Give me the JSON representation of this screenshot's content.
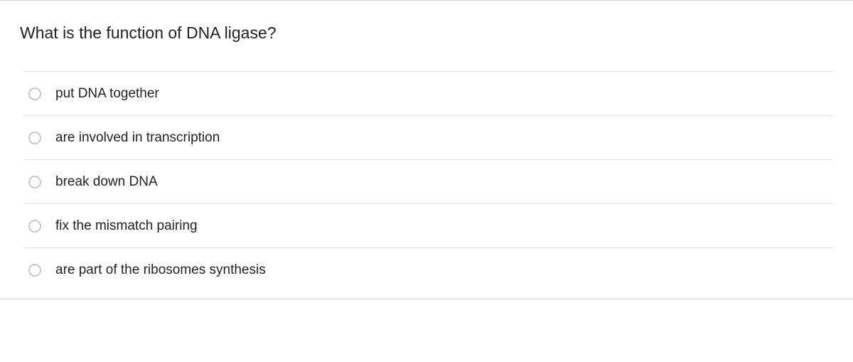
{
  "question": {
    "text": "What is the function of DNA ligase?",
    "options": [
      {
        "label": "put DNA together"
      },
      {
        "label": "are involved in transcription"
      },
      {
        "label": "break down DNA"
      },
      {
        "label": "fix the mismatch pairing"
      },
      {
        "label": "are part of the ribosomes synthesis"
      }
    ]
  },
  "colors": {
    "border": "#d6d6d6",
    "row_border": "#e4e4e4",
    "radio_border": "#c8c8c8",
    "text": "#222222",
    "background": "#ffffff"
  }
}
